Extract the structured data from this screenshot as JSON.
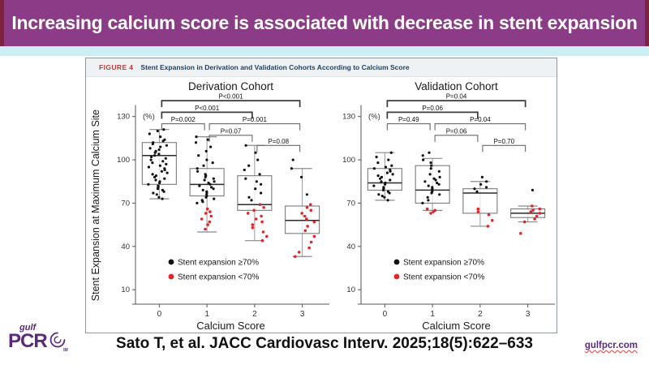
{
  "header": {
    "title": "Increasing calcium score is associated with decrease in stent expansion",
    "bg_color": "#8c3c86",
    "edge_color": "#7b2342",
    "strip_color": "#cdeef4"
  },
  "figure": {
    "label": "FIGURE 4",
    "caption": "Stent Expansion in Derivation and Validation Cohorts According to Calcium Score",
    "label_color": "#c23b3b",
    "caption_color": "#1d3e5f"
  },
  "footer": {
    "citation": "Sato T, et al. JACC Cardiovasc Interv. 2025;18(5):622–633",
    "logo_top": "gulf",
    "logo_main": "PCR",
    "logo_sub": "IM",
    "website": "gulfpcr.com",
    "brand_color": "#5b2a7e"
  },
  "chart_data": [
    {
      "type": "box",
      "title": "Derivation Cohort",
      "xlabel": "Calcium Score",
      "ylabel": "Stent Expansion at Maximum Calcium Site",
      "y_unit": "(%)",
      "categories": [
        "0",
        "1",
        "2",
        "3"
      ],
      "yticks": [
        130,
        100,
        70,
        40,
        10
      ],
      "ylim": [
        0,
        145
      ],
      "legend": [
        {
          "label": "Stent expansion ≥70%",
          "color": "#111111"
        },
        {
          "label": "Stent expansion <70%",
          "color": "#e2252b"
        }
      ],
      "boxes": [
        {
          "low": 73,
          "q1": 83,
          "med": 103,
          "q3": 112,
          "high": 121
        },
        {
          "low": 50,
          "q1": 75,
          "med": 83,
          "q3": 94,
          "high": 116
        },
        {
          "low": 44,
          "q1": 65,
          "med": 69,
          "q3": 89,
          "high": 110
        },
        {
          "low": 33,
          "q1": 49,
          "med": 58,
          "q3": 68,
          "high": 94
        }
      ],
      "points_black": [
        [
          73,
          74,
          76,
          77,
          78,
          79,
          80,
          81,
          82,
          83,
          84,
          85,
          86,
          87,
          88,
          89,
          90,
          91,
          92,
          93,
          94,
          95,
          96,
          97,
          98,
          99,
          100,
          101,
          102,
          103,
          104,
          105,
          106,
          107,
          108,
          109,
          110,
          111,
          112,
          113,
          114,
          116,
          118,
          120,
          121
        ],
        [
          70,
          71,
          72,
          73,
          74,
          75,
          76,
          77,
          78,
          79,
          80,
          81,
          82,
          83,
          84,
          85,
          86,
          87,
          88,
          89,
          90,
          92,
          94,
          96,
          98,
          100,
          103,
          106,
          109,
          112,
          114,
          116
        ],
        [
          72,
          74,
          77,
          80,
          83,
          85,
          87,
          90,
          93,
          96,
          100,
          105,
          110
        ],
        [
          76,
          88,
          94,
          100
        ]
      ],
      "points_red": [
        [],
        [
          52,
          55,
          57,
          59,
          61,
          63,
          64,
          66
        ],
        [
          44,
          47,
          50,
          53,
          55,
          57,
          59,
          61,
          63,
          65,
          67,
          69
        ],
        [
          33,
          36,
          39,
          43,
          47,
          51,
          54,
          57,
          59,
          61,
          63,
          65,
          67,
          69
        ]
      ],
      "brackets": [
        {
          "from": 0,
          "to": 3,
          "label": "P<0.001",
          "y": 141,
          "bold": true
        },
        {
          "from": 0,
          "to": 2,
          "label": "P<0.001",
          "y": 133,
          "bold": true
        },
        {
          "from": 0,
          "to": 1,
          "label": "P=0.002",
          "y": 125,
          "bold": false
        },
        {
          "from": 1,
          "to": 3,
          "label": "P=0.001",
          "y": 125,
          "bold": false
        },
        {
          "from": 1,
          "to": 2,
          "label": "P=0.07",
          "y": 117,
          "bold": false
        },
        {
          "from": 2,
          "to": 3,
          "label": "P=0.08",
          "y": 110,
          "bold": false
        }
      ]
    },
    {
      "type": "box",
      "title": "Validation Cohort",
      "xlabel": "Calcium Score",
      "ylabel": "",
      "y_unit": "(%)",
      "categories": [
        "0",
        "1",
        "2",
        "3"
      ],
      "yticks": [
        130,
        100,
        70,
        40,
        10
      ],
      "ylim": [
        0,
        145
      ],
      "legend": [
        {
          "label": "Stent expansion ≥70%",
          "color": "#111111"
        },
        {
          "label": "Stent expansion <70%",
          "color": "#e2252b"
        }
      ],
      "boxes": [
        {
          "low": 72,
          "q1": 79,
          "med": 84,
          "q3": 94,
          "high": 105
        },
        {
          "low": 65,
          "q1": 70,
          "med": 79,
          "q3": 96,
          "high": 101
        },
        {
          "low": 54,
          "q1": 63,
          "med": 77,
          "q3": 80,
          "high": 85
        },
        {
          "low": 57,
          "q1": 60,
          "med": 63,
          "q3": 66,
          "high": 68
        }
      ],
      "points_black": [
        [
          72,
          74,
          75,
          76,
          77,
          78,
          79,
          80,
          81,
          82,
          83,
          84,
          85,
          86,
          87,
          88,
          89,
          90,
          91,
          92,
          93,
          94,
          95,
          96,
          98,
          100,
          102,
          105
        ],
        [
          70,
          72,
          74,
          76,
          77,
          78,
          79,
          80,
          81,
          82,
          83,
          84,
          85,
          86,
          87,
          88,
          90,
          92,
          94,
          96,
          98,
          100,
          103,
          105
        ],
        [
          78,
          80,
          81,
          83,
          85,
          88
        ],
        [
          79
        ]
      ],
      "points_red": [
        [],
        [
          63,
          64,
          65,
          66
        ],
        [
          54,
          58,
          62,
          64,
          66
        ],
        [
          49,
          57,
          59,
          61,
          63,
          64,
          65,
          66,
          68
        ]
      ],
      "brackets": [
        {
          "from": 0,
          "to": 3,
          "label": "P=0.04",
          "y": 141,
          "bold": true
        },
        {
          "from": 0,
          "to": 2,
          "label": "P=0.06",
          "y": 133,
          "bold": true
        },
        {
          "from": 0,
          "to": 1,
          "label": "P=0.49",
          "y": 125,
          "bold": false
        },
        {
          "from": 1,
          "to": 3,
          "label": "P=0.04",
          "y": 125,
          "bold": false
        },
        {
          "from": 1,
          "to": 2,
          "label": "P=0.06",
          "y": 117,
          "bold": false
        },
        {
          "from": 2,
          "to": 3,
          "label": "P=0.70",
          "y": 110,
          "bold": false
        }
      ]
    }
  ]
}
